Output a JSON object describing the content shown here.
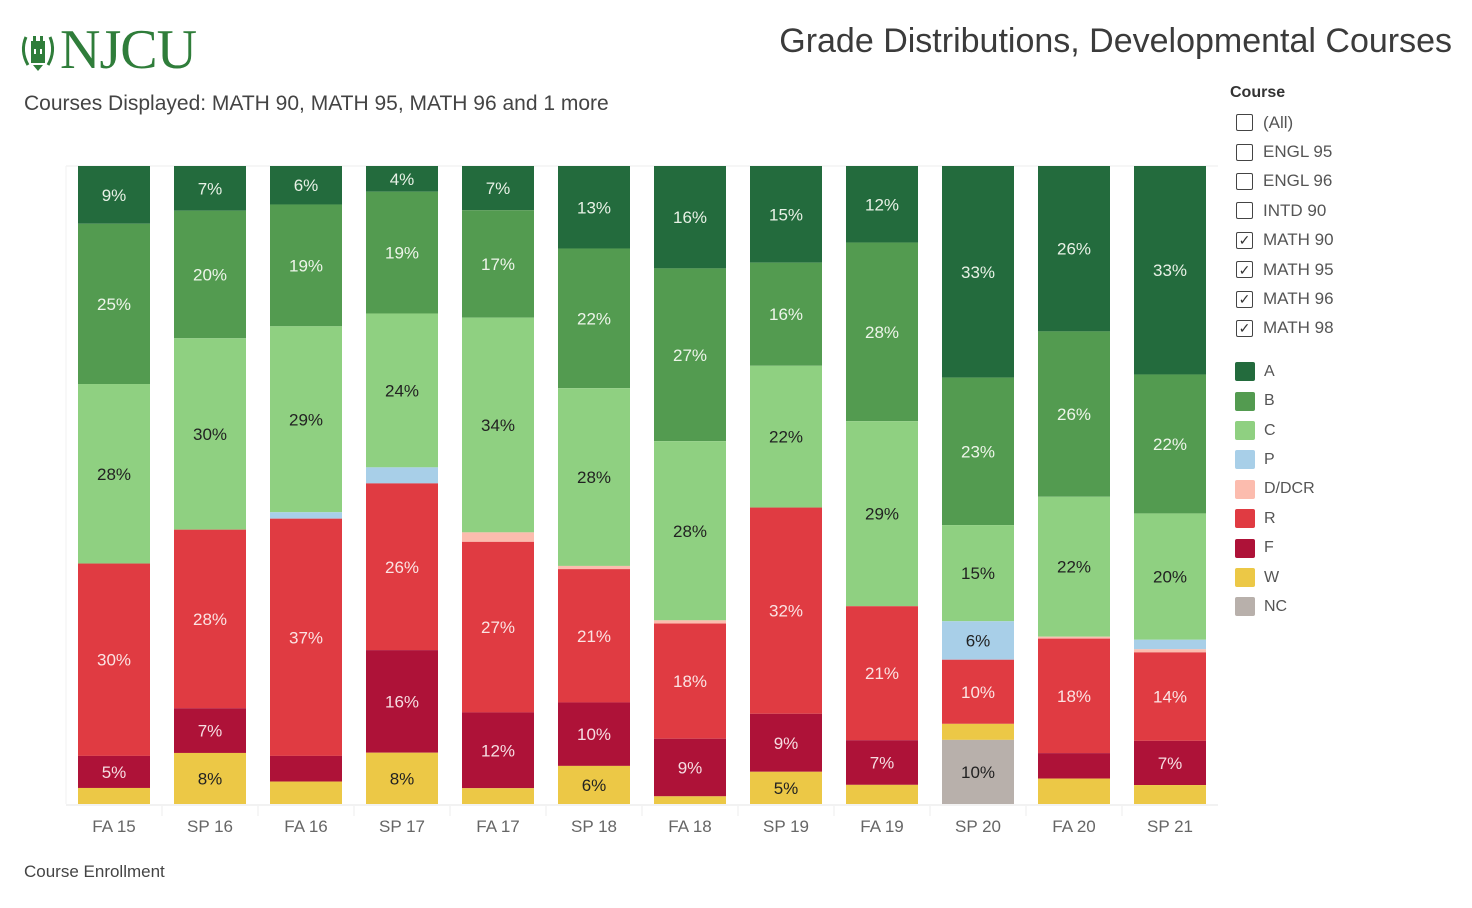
{
  "header": {
    "logo_text": "NJCU",
    "title": "Grade Distributions, Developmental Courses",
    "subtitle": "Courses Displayed: MATH  90, MATH  95, MATH  96 and 1 more"
  },
  "filter": {
    "title": "Course",
    "items": [
      {
        "label": "(All)",
        "checked": false
      },
      {
        "label": "ENGL 95",
        "checked": false
      },
      {
        "label": "ENGL 96",
        "checked": false
      },
      {
        "label": "INTD 90",
        "checked": false
      },
      {
        "label": "MATH 90",
        "checked": true
      },
      {
        "label": "MATH 95",
        "checked": true
      },
      {
        "label": "MATH 96",
        "checked": true
      },
      {
        "label": "MATH 98",
        "checked": true
      }
    ],
    "check_glyph": "✓"
  },
  "legend": {
    "items": [
      {
        "label": "A",
        "color": "#236b3d"
      },
      {
        "label": "B",
        "color": "#539b50"
      },
      {
        "label": "C",
        "color": "#8fd081"
      },
      {
        "label": "P",
        "color": "#a8cfe8"
      },
      {
        "label": "D/DCR",
        "color": "#fcbcae"
      },
      {
        "label": "R",
        "color": "#e03b42"
      },
      {
        "label": "F",
        "color": "#ae1238"
      },
      {
        "label": "W",
        "color": "#ecc846"
      },
      {
        "label": "NC",
        "color": "#b8b0ab"
      }
    ]
  },
  "footer": {
    "enrollment_title": "Course Enrollment"
  },
  "chart_data": {
    "type": "bar",
    "stacked": true,
    "normalized": true,
    "title": "Grade Distributions, Developmental Courses",
    "xlabel": "",
    "ylabel": "",
    "ylim": [
      0,
      100
    ],
    "grid": false,
    "legend_position": "right",
    "categories": [
      "FA 15",
      "SP 16",
      "FA 16",
      "SP 17",
      "FA 17",
      "SP 18",
      "FA 18",
      "SP 19",
      "FA 19",
      "SP 20",
      "FA 20",
      "SP 21"
    ],
    "series": [
      {
        "name": "A",
        "color": "#236b3d",
        "values": [
          9,
          7,
          6,
          4,
          7,
          13,
          16,
          15,
          12,
          33,
          26,
          33
        ]
      },
      {
        "name": "B",
        "color": "#539b50",
        "values": [
          25,
          20,
          19,
          19,
          17,
          22,
          27,
          16,
          28,
          23,
          26,
          22
        ]
      },
      {
        "name": "C",
        "color": "#8fd081",
        "values": [
          28,
          30,
          29,
          24,
          34,
          28,
          28,
          22,
          29,
          15,
          22,
          20
        ]
      },
      {
        "name": "P",
        "color": "#a8cfe8",
        "values": [
          0,
          0,
          1,
          2.5,
          0,
          0,
          0,
          0,
          0,
          6,
          0,
          1.5
        ]
      },
      {
        "name": "D/DCR",
        "color": "#fcbcae",
        "values": [
          0,
          0,
          0,
          0,
          1.5,
          0.5,
          0.5,
          0,
          0,
          0,
          0.3,
          0.5
        ]
      },
      {
        "name": "R",
        "color": "#e03b42",
        "values": [
          30,
          28,
          37,
          26,
          27,
          21,
          18,
          32,
          21,
          10,
          18,
          14
        ]
      },
      {
        "name": "F",
        "color": "#ae1238",
        "values": [
          5,
          7,
          4,
          16,
          12,
          10,
          9,
          9,
          7,
          0,
          4,
          7
        ]
      },
      {
        "name": "W",
        "color": "#ecc846",
        "values": [
          2.5,
          8,
          3.5,
          8,
          2.5,
          6,
          1.2,
          5,
          3,
          2.5,
          4,
          3
        ]
      },
      {
        "name": "NC",
        "color": "#b8b0ab",
        "values": [
          0,
          0,
          0,
          0,
          0,
          0,
          0,
          0,
          0,
          10,
          0,
          0
        ]
      }
    ],
    "data_labels": [
      {
        "A": "9%",
        "B": "25%",
        "C": "28%",
        "R": "30%",
        "F": "5%"
      },
      {
        "A": "7%",
        "B": "20%",
        "C": "30%",
        "R": "28%",
        "F": "7%",
        "W": "8%"
      },
      {
        "A": "6%",
        "B": "19%",
        "C": "29%",
        "R": "37%"
      },
      {
        "A": "4%",
        "B": "19%",
        "C": "24%",
        "R": "26%",
        "F": "16%",
        "W": "8%"
      },
      {
        "A": "7%",
        "B": "17%",
        "C": "34%",
        "R": "27%",
        "F": "12%"
      },
      {
        "A": "13%",
        "B": "22%",
        "C": "28%",
        "R": "21%",
        "F": "10%",
        "W": "6%"
      },
      {
        "A": "16%",
        "B": "27%",
        "C": "28%",
        "R": "18%",
        "F": "9%"
      },
      {
        "A": "15%",
        "B": "16%",
        "C": "22%",
        "R": "32%",
        "F": "9%",
        "W": "5%"
      },
      {
        "A": "12%",
        "B": "28%",
        "C": "29%",
        "R": "21%",
        "F": "7%"
      },
      {
        "A": "33%",
        "B": "23%",
        "C": "15%",
        "P": "6%",
        "R": "10%",
        "NC": "10%"
      },
      {
        "A": "26%",
        "B": "26%",
        "C": "22%",
        "R": "18%"
      },
      {
        "A": "33%",
        "B": "22%",
        "C": "20%",
        "R": "14%",
        "F": "7%"
      }
    ],
    "label_colors": {
      "A": "#e8f1e6",
      "B": "#eef5ea",
      "C": "#222222",
      "P": "#222222",
      "R": "#fbe3e3",
      "F": "#f6dde2",
      "W": "#222222",
      "NC": "#222222"
    }
  }
}
